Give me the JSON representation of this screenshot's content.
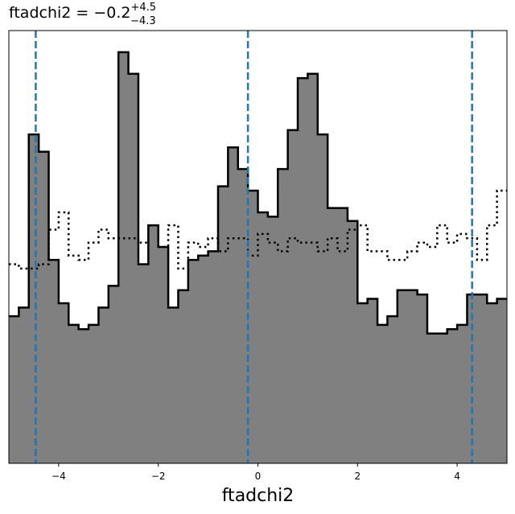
{
  "chart_data": {
    "type": "histogram",
    "title": {
      "prefix": "ftadchi2 = −0.2",
      "upper": "+4.5",
      "lower": "−4.3"
    },
    "xlabel": "ftadchi2",
    "ylabel": "",
    "xlim": [
      -5.0,
      5.0
    ],
    "ylim": [
      0,
      1.0
    ],
    "xticks": [
      -4,
      -2,
      0,
      2,
      4
    ],
    "xtick_labels": [
      "−4",
      "−2",
      "0",
      "2",
      "4"
    ],
    "y_ticks_shown": false,
    "bin_start": -5.0,
    "bin_width": 0.2,
    "series": [
      {
        "style": "filled-step",
        "fill": "#808080",
        "edge": "#000000",
        "values": [
          0.34,
          0.36,
          0.76,
          0.72,
          0.47,
          0.37,
          0.32,
          0.31,
          0.32,
          0.36,
          0.41,
          0.95,
          0.9,
          0.46,
          0.55,
          0.5,
          0.36,
          0.4,
          0.47,
          0.48,
          0.49,
          0.64,
          0.73,
          0.68,
          0.63,
          0.58,
          0.57,
          0.68,
          0.77,
          0.89,
          0.9,
          0.76,
          0.59,
          0.59,
          0.56,
          0.37,
          0.38,
          0.32,
          0.34,
          0.4,
          0.4,
          0.39,
          0.3,
          0.3,
          0.31,
          0.32,
          0.39,
          0.39,
          0.37,
          0.38
        ]
      },
      {
        "style": "dotted-step",
        "edge": "#000000",
        "values": [
          0.46,
          0.45,
          0.45,
          0.46,
          0.54,
          0.58,
          0.48,
          0.47,
          0.51,
          0.54,
          0.52,
          0.52,
          0.52,
          0.51,
          0.55,
          0.5,
          0.55,
          0.45,
          0.51,
          0.5,
          0.52,
          0.49,
          0.52,
          0.52,
          0.48,
          0.53,
          0.51,
          0.49,
          0.52,
          0.51,
          0.51,
          0.49,
          0.52,
          0.49,
          0.54,
          0.55,
          0.49,
          0.49,
          0.47,
          0.47,
          0.49,
          0.51,
          0.5,
          0.55,
          0.51,
          0.53,
          0.52,
          0.47,
          0.55,
          0.63
        ]
      }
    ],
    "vlines": [
      -4.46,
      -0.2,
      4.3
    ],
    "vline_color": "#1f77b4"
  }
}
